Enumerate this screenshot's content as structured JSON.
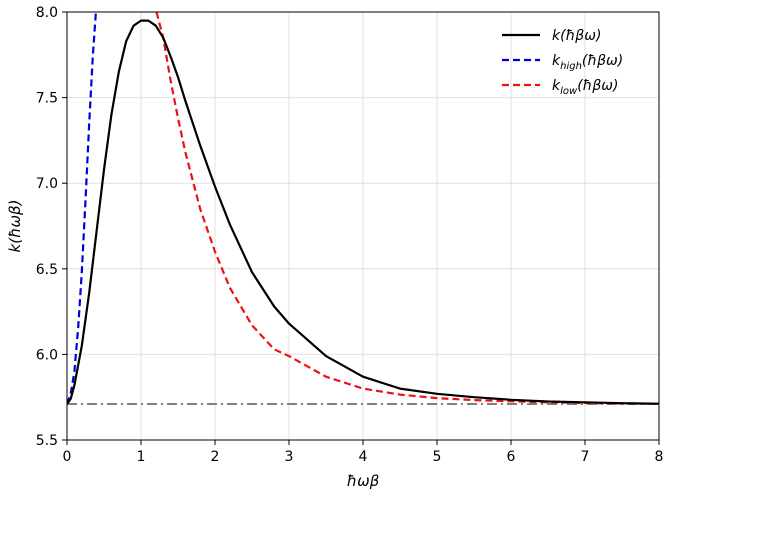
{
  "chart_data": {
    "type": "line",
    "xlabel": "ħωβ",
    "ylabel": "k(ħωβ)",
    "xlim": [
      0,
      8
    ],
    "ylim": [
      5.5,
      8.0
    ],
    "x_ticks": [
      "0",
      "1",
      "2",
      "3",
      "4",
      "5",
      "6",
      "7",
      "8"
    ],
    "y_ticks": [
      "5.5",
      "6.0",
      "6.5",
      "7.0",
      "7.5",
      "8.0"
    ],
    "grid": true,
    "legend_position": "top-right",
    "colors": {
      "exact": "#000000",
      "high": "#0000dd",
      "low": "#ee1111",
      "asymptote": "#808080"
    },
    "asymptote_y": 5.71,
    "series": [
      {
        "key": "exact",
        "legend_main": "k(ħβω)",
        "legend_sub": "",
        "legend_tail": "",
        "style": "solid",
        "x": [
          0,
          0.05,
          0.1,
          0.2,
          0.3,
          0.4,
          0.5,
          0.6,
          0.7,
          0.8,
          0.9,
          1.0,
          1.1,
          1.2,
          1.3,
          1.4,
          1.5,
          1.6,
          1.8,
          2.0,
          2.2,
          2.5,
          2.8,
          3.0,
          3.5,
          4.0,
          4.5,
          5.0,
          5.5,
          6.0,
          6.5,
          7.0,
          7.5,
          8.0
        ],
        "y": [
          5.71,
          5.74,
          5.82,
          6.05,
          6.36,
          6.72,
          7.08,
          7.4,
          7.65,
          7.83,
          7.92,
          7.95,
          7.95,
          7.92,
          7.85,
          7.74,
          7.62,
          7.48,
          7.22,
          6.98,
          6.76,
          6.48,
          6.28,
          6.18,
          5.99,
          5.87,
          5.8,
          5.77,
          5.75,
          5.735,
          5.725,
          5.72,
          5.715,
          5.712
        ]
      },
      {
        "key": "high",
        "legend_main": "k",
        "legend_sub": "high",
        "legend_tail": "(ħβω)",
        "style": "dashed",
        "x": [
          0,
          0.05,
          0.1,
          0.15,
          0.2,
          0.25,
          0.3,
          0.35,
          0.39
        ],
        "y": [
          5.71,
          5.77,
          5.9,
          6.15,
          6.48,
          6.9,
          7.35,
          7.75,
          8.0
        ]
      },
      {
        "key": "low",
        "legend_main": "k",
        "legend_sub": "low",
        "legend_tail": "(ħβω)",
        "style": "dashed",
        "x": [
          1.21,
          1.3,
          1.4,
          1.5,
          1.6,
          1.8,
          2.0,
          2.2,
          2.5,
          2.8,
          3.0,
          3.5,
          4.0,
          4.5,
          5.0,
          5.5,
          6.0,
          6.5,
          7.0,
          7.5,
          8.0
        ],
        "y": [
          8.0,
          7.85,
          7.6,
          7.38,
          7.18,
          6.85,
          6.6,
          6.39,
          6.17,
          6.03,
          5.99,
          5.87,
          5.8,
          5.765,
          5.745,
          5.733,
          5.726,
          5.72,
          5.716,
          5.713,
          5.711
        ]
      }
    ]
  }
}
